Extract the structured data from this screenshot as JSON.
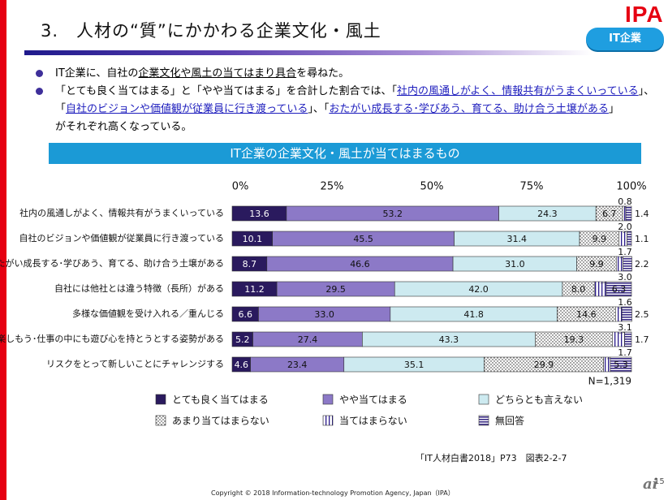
{
  "header": {
    "title": "3.　人材の“質”にかかわる企業文化・風土",
    "logo": "IPA",
    "badge": "IT企業"
  },
  "bullets": [
    {
      "parts": [
        {
          "text": "IT企業に、自社の",
          "style": ""
        },
        {
          "text": "企業文化や風土の当てはまり具合",
          "style": "u"
        },
        {
          "text": "を尋ねた。",
          "style": ""
        }
      ]
    },
    {
      "lines": [
        [
          {
            "text": "「とても良く当てはまる」と「やや当てはまる」を合計した割合では、「",
            "style": ""
          },
          {
            "text": "社内の風通しがよく、情報共有がうまくいっている",
            "style": "hl"
          },
          {
            "text": "」、",
            "style": ""
          }
        ],
        [
          {
            "text": "「",
            "style": ""
          },
          {
            "text": "自社のビジョンや価値観が従業員に行き渡っている",
            "style": "hl"
          },
          {
            "text": "」、「",
            "style": ""
          },
          {
            "text": "おたがい成長する･学びあう、育てる、助け合う土壌がある",
            "style": "hl"
          },
          {
            "text": "」",
            "style": ""
          }
        ],
        [
          {
            "text": "がそれぞれ高くなっている。",
            "style": ""
          }
        ]
      ]
    }
  ],
  "chart_banner": "IT企業の企業文化・風土が当てはまるもの",
  "chart_data": {
    "type": "bar",
    "orientation": "horizontal",
    "stacked": true,
    "xlim": [
      0,
      100
    ],
    "x_ticks": [
      "0%",
      "25%",
      "50%",
      "75%",
      "100%"
    ],
    "categories": [
      "社内の風通しがよく、情報共有がうまくいっている",
      "自社のビジョンや価値観が従業員に行き渡っている",
      "おたがい成長する･学びあう、育てる、助け合う土壌がある",
      "自社には他社とは違う特徴（長所）がある",
      "多様な価値観を受け入れる／重んじる",
      "仕事を楽しもう･仕事の中にも遊び心を持とうとする姿勢がある",
      "リスクをとって新しいことにチャレンジする"
    ],
    "series": [
      {
        "name": "とても良く当てはまる",
        "color": "#2a1a5e",
        "values": [
          13.6,
          10.1,
          8.7,
          11.2,
          6.6,
          5.2,
          4.6
        ]
      },
      {
        "name": "やや当てはまる",
        "color": "#8c79c7",
        "values": [
          53.2,
          45.5,
          46.6,
          29.5,
          33.0,
          27.4,
          23.4
        ]
      },
      {
        "name": "どちらとも言えない",
        "color": "#cdeaf0",
        "values": [
          24.3,
          31.4,
          31.0,
          42.0,
          41.8,
          43.3,
          35.1
        ]
      },
      {
        "name": "あまり当てはまらない",
        "color": "#ffffff",
        "pattern": "dots",
        "values": [
          6.7,
          9.9,
          9.9,
          8.0,
          14.6,
          19.3,
          29.9
        ]
      },
      {
        "name": "当てはまらない",
        "color": "#ffffff",
        "pattern": "vlines",
        "values": [
          0.8,
          2.0,
          1.7,
          3.0,
          1.6,
          3.1,
          1.7
        ]
      },
      {
        "name": "無回答",
        "color": "#4a3d8f",
        "pattern": "hlines",
        "values": [
          1.4,
          1.1,
          2.2,
          6.3,
          2.5,
          1.7,
          5.3
        ]
      }
    ],
    "value_labels": {
      "とても良く当てはまる": [
        "13.6",
        "10.1",
        "8.7",
        "11.2",
        "6.6",
        "5.2",
        "4.6"
      ],
      "やや当てはまる": [
        "53.2",
        "45.5",
        "46.6",
        "29.5",
        "33.0",
        "27.4",
        "23.4"
      ],
      "どちらとも言えない": [
        "24.3",
        "31.4",
        "31.0",
        "42.0",
        "41.8",
        "43.3",
        "35.1"
      ],
      "あまり当てはまらない": [
        "6.7",
        "9.9",
        "9.9",
        "8.0",
        "14.6",
        "19.3",
        "29.9"
      ],
      "当てはまらない": [
        "0.8",
        "2.0",
        "1.7",
        "3.0",
        "1.6",
        "3.1",
        "1.7"
      ],
      "無回答": [
        "1.4",
        "1.1",
        "2.2",
        "6.3",
        "2.5",
        "1.7",
        "5.3"
      ]
    },
    "sample_size": "N=1,319",
    "legend_position": "bottom"
  },
  "source_note": "「IT人材白書2018」P73　図表2-2-7",
  "copyright": "Copyright © 2018 Information-technology Promotion Agency, Japan（IPA）",
  "corner_mark": "ai",
  "page_number": "15"
}
